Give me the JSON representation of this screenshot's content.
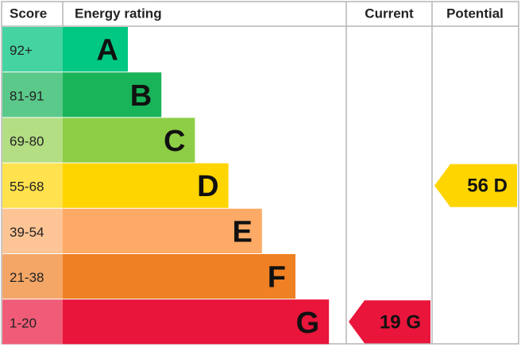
{
  "header": {
    "score": "Score",
    "rating": "Energy rating",
    "current": "Current",
    "potential": "Potential"
  },
  "bands": [
    {
      "range": "92+",
      "letter": "A",
      "color": "#00c781",
      "light": "#45d3a1"
    },
    {
      "range": "81-91",
      "letter": "B",
      "color": "#19b459",
      "light": "#5bc98a"
    },
    {
      "range": "69-80",
      "letter": "C",
      "color": "#8dce46",
      "light": "#b3de83"
    },
    {
      "range": "55-68",
      "letter": "D",
      "color": "#ffd500",
      "light": "#ffe24d"
    },
    {
      "range": "39-54",
      "letter": "E",
      "color": "#fcaa65",
      "light": "#fdc495"
    },
    {
      "range": "21-38",
      "letter": "F",
      "color": "#ef8023",
      "light": "#f4a667"
    },
    {
      "range": "1-20",
      "letter": "G",
      "color": "#e9153b",
      "light": "#f05c77"
    }
  ],
  "current": {
    "score": 19,
    "band": "G"
  },
  "potential": {
    "score": 56,
    "band": "D"
  }
}
